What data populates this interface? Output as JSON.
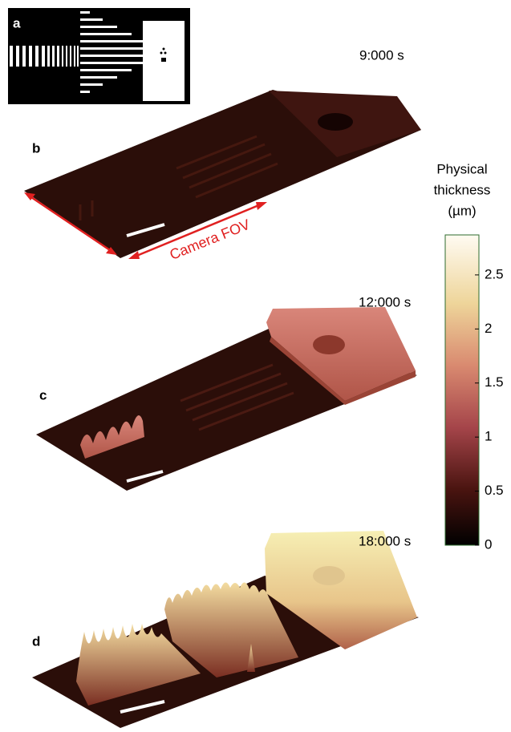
{
  "panels": [
    {
      "label": "a"
    },
    {
      "label": "b",
      "time": "9:000 s",
      "annotation": "Camera FOV"
    },
    {
      "label": "c",
      "time": "12:000 s"
    },
    {
      "label": "d",
      "time": "18:000 s"
    }
  ],
  "colorbar": {
    "title": [
      "Physical",
      "thickness",
      "(µm)"
    ],
    "lim": [
      0,
      2.87
    ],
    "ticks": [
      0,
      0.5,
      1,
      1.5,
      2,
      2.5
    ]
  }
}
